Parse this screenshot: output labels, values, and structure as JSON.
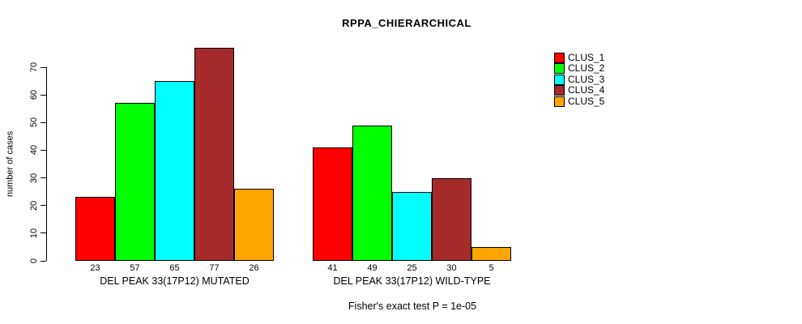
{
  "chart_data": {
    "type": "bar",
    "title": "RPPA_CHIERARCHICAL",
    "ylabel": "number of cases",
    "xlabel": "",
    "ylim": [
      0,
      70
    ],
    "yticks": [
      0,
      10,
      20,
      30,
      40,
      50,
      60,
      70
    ],
    "grid": false,
    "legend_position": "top-right",
    "groups": [
      "DEL PEAK 33(17P12) MUTATED",
      "DEL PEAK 33(17P12) WILD-TYPE"
    ],
    "series": [
      {
        "name": "CLUS_1",
        "color": "#FF0000",
        "values": [
          23,
          41
        ]
      },
      {
        "name": "CLUS_2",
        "color": "#00FF00",
        "values": [
          57,
          49
        ]
      },
      {
        "name": "CLUS_3",
        "color": "#00FFFF",
        "values": [
          65,
          25
        ]
      },
      {
        "name": "CLUS_4",
        "color": "#A52A2A",
        "values": [
          77,
          30
        ]
      },
      {
        "name": "CLUS_5",
        "color": "#FFA500",
        "values": [
          26,
          5
        ]
      }
    ],
    "value_labels_shown": true,
    "annotation": "Fisher's exact test P = 1e-05"
  },
  "colors": {
    "axis": "#000000",
    "text": "#000000",
    "background": "#FFFFFF"
  }
}
